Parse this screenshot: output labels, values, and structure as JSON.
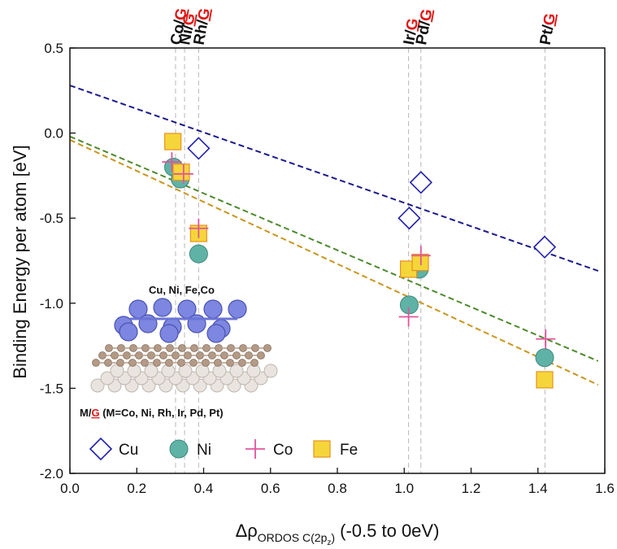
{
  "chart_data": {
    "type": "scatter",
    "ylabel": "Binding Energy per atom [eV]",
    "xlabel": {
      "prefix": "Δρ",
      "sub": "ORDOS C(2p",
      "subsub": "z",
      "subclose": ")",
      "suffix": " (-0.5 to 0eV)"
    },
    "xlim": [
      0.0,
      1.6
    ],
    "ylim": [
      -2.0,
      0.5
    ],
    "xticks": [
      "0.0",
      "0.2",
      "0.4",
      "0.6",
      "0.8",
      "1.0",
      "1.2",
      "1.4",
      "1.6"
    ],
    "yticks": [
      "0.5",
      "0.0",
      "-0.5",
      "-1.0",
      "-1.5",
      "-2.0"
    ],
    "xtick_values": [
      0.0,
      0.2,
      0.4,
      0.6,
      0.8,
      1.0,
      1.2,
      1.4,
      1.6
    ],
    "ytick_values": [
      0.5,
      0.0,
      -0.5,
      -1.0,
      -1.5,
      -2.0
    ],
    "substrate_labels": [
      {
        "metal": "Co",
        "x": 0.316,
        "sep": "/",
        "g": "G"
      },
      {
        "metal": "Ni",
        "x": 0.343,
        "sep": "/",
        "g": "G"
      },
      {
        "metal": "Rh",
        "x": 0.385,
        "sep": "/",
        "g": "G"
      },
      {
        "metal": "Ir",
        "x": 1.013,
        "sep": "/",
        "g": "G"
      },
      {
        "metal": "Pd",
        "x": 1.05,
        "sep": "/",
        "g": "G"
      },
      {
        "metal": "Pt",
        "x": 1.421,
        "sep": "/",
        "g": "G"
      }
    ],
    "series": [
      {
        "name": "Cu",
        "marker": "diamond",
        "color": "#1f1fb0",
        "points": [
          [
            0.385,
            -0.09
          ],
          [
            1.015,
            -0.5
          ],
          [
            1.05,
            -0.29
          ],
          [
            1.42,
            -0.67
          ]
        ]
      },
      {
        "name": "Ni",
        "marker": "circle",
        "color": "#5fb3a6",
        "points": [
          [
            0.31,
            -0.2
          ],
          [
            0.33,
            -0.27
          ],
          [
            0.385,
            -0.71
          ],
          [
            1.015,
            -1.01
          ],
          [
            1.045,
            -0.8
          ],
          [
            1.42,
            -1.32
          ]
        ]
      },
      {
        "name": "Co",
        "marker": "plus",
        "color": "#e0559b",
        "points": [
          [
            0.305,
            -0.17
          ],
          [
            0.34,
            -0.24
          ],
          [
            0.385,
            -0.56
          ],
          [
            1.013,
            -1.08
          ],
          [
            1.05,
            -0.72
          ],
          [
            1.423,
            -1.21
          ]
        ]
      },
      {
        "name": "Fe",
        "marker": "square",
        "color": "#f5d63a",
        "points": [
          [
            0.308,
            -0.05
          ],
          [
            0.333,
            -0.23
          ],
          [
            0.385,
            -0.59
          ],
          [
            1.013,
            -0.8
          ],
          [
            1.048,
            -0.76
          ],
          [
            1.42,
            -1.45
          ]
        ]
      }
    ],
    "fit_lines": [
      {
        "color": "#1a1a8c",
        "x": [
          0.0,
          1.58
        ],
        "y": [
          0.28,
          -0.81
        ]
      },
      {
        "color": "#4e8a2e",
        "x": [
          0.0,
          1.58
        ],
        "y": [
          -0.02,
          -1.34
        ]
      },
      {
        "color": "#c8961e",
        "x": [
          0.0,
          1.58
        ],
        "y": [
          -0.04,
          -1.48
        ]
      }
    ],
    "grid": false,
    "legend_position": "bottom-left"
  },
  "inset": {
    "top_caption": "Cu, Ni, Fe,Co",
    "bottom_caption_prefix": "M/",
    "bottom_caption_g": "G",
    "bottom_caption_suffix": " (M=Co, Ni, Rh, Ir, Pd, Pt)"
  }
}
